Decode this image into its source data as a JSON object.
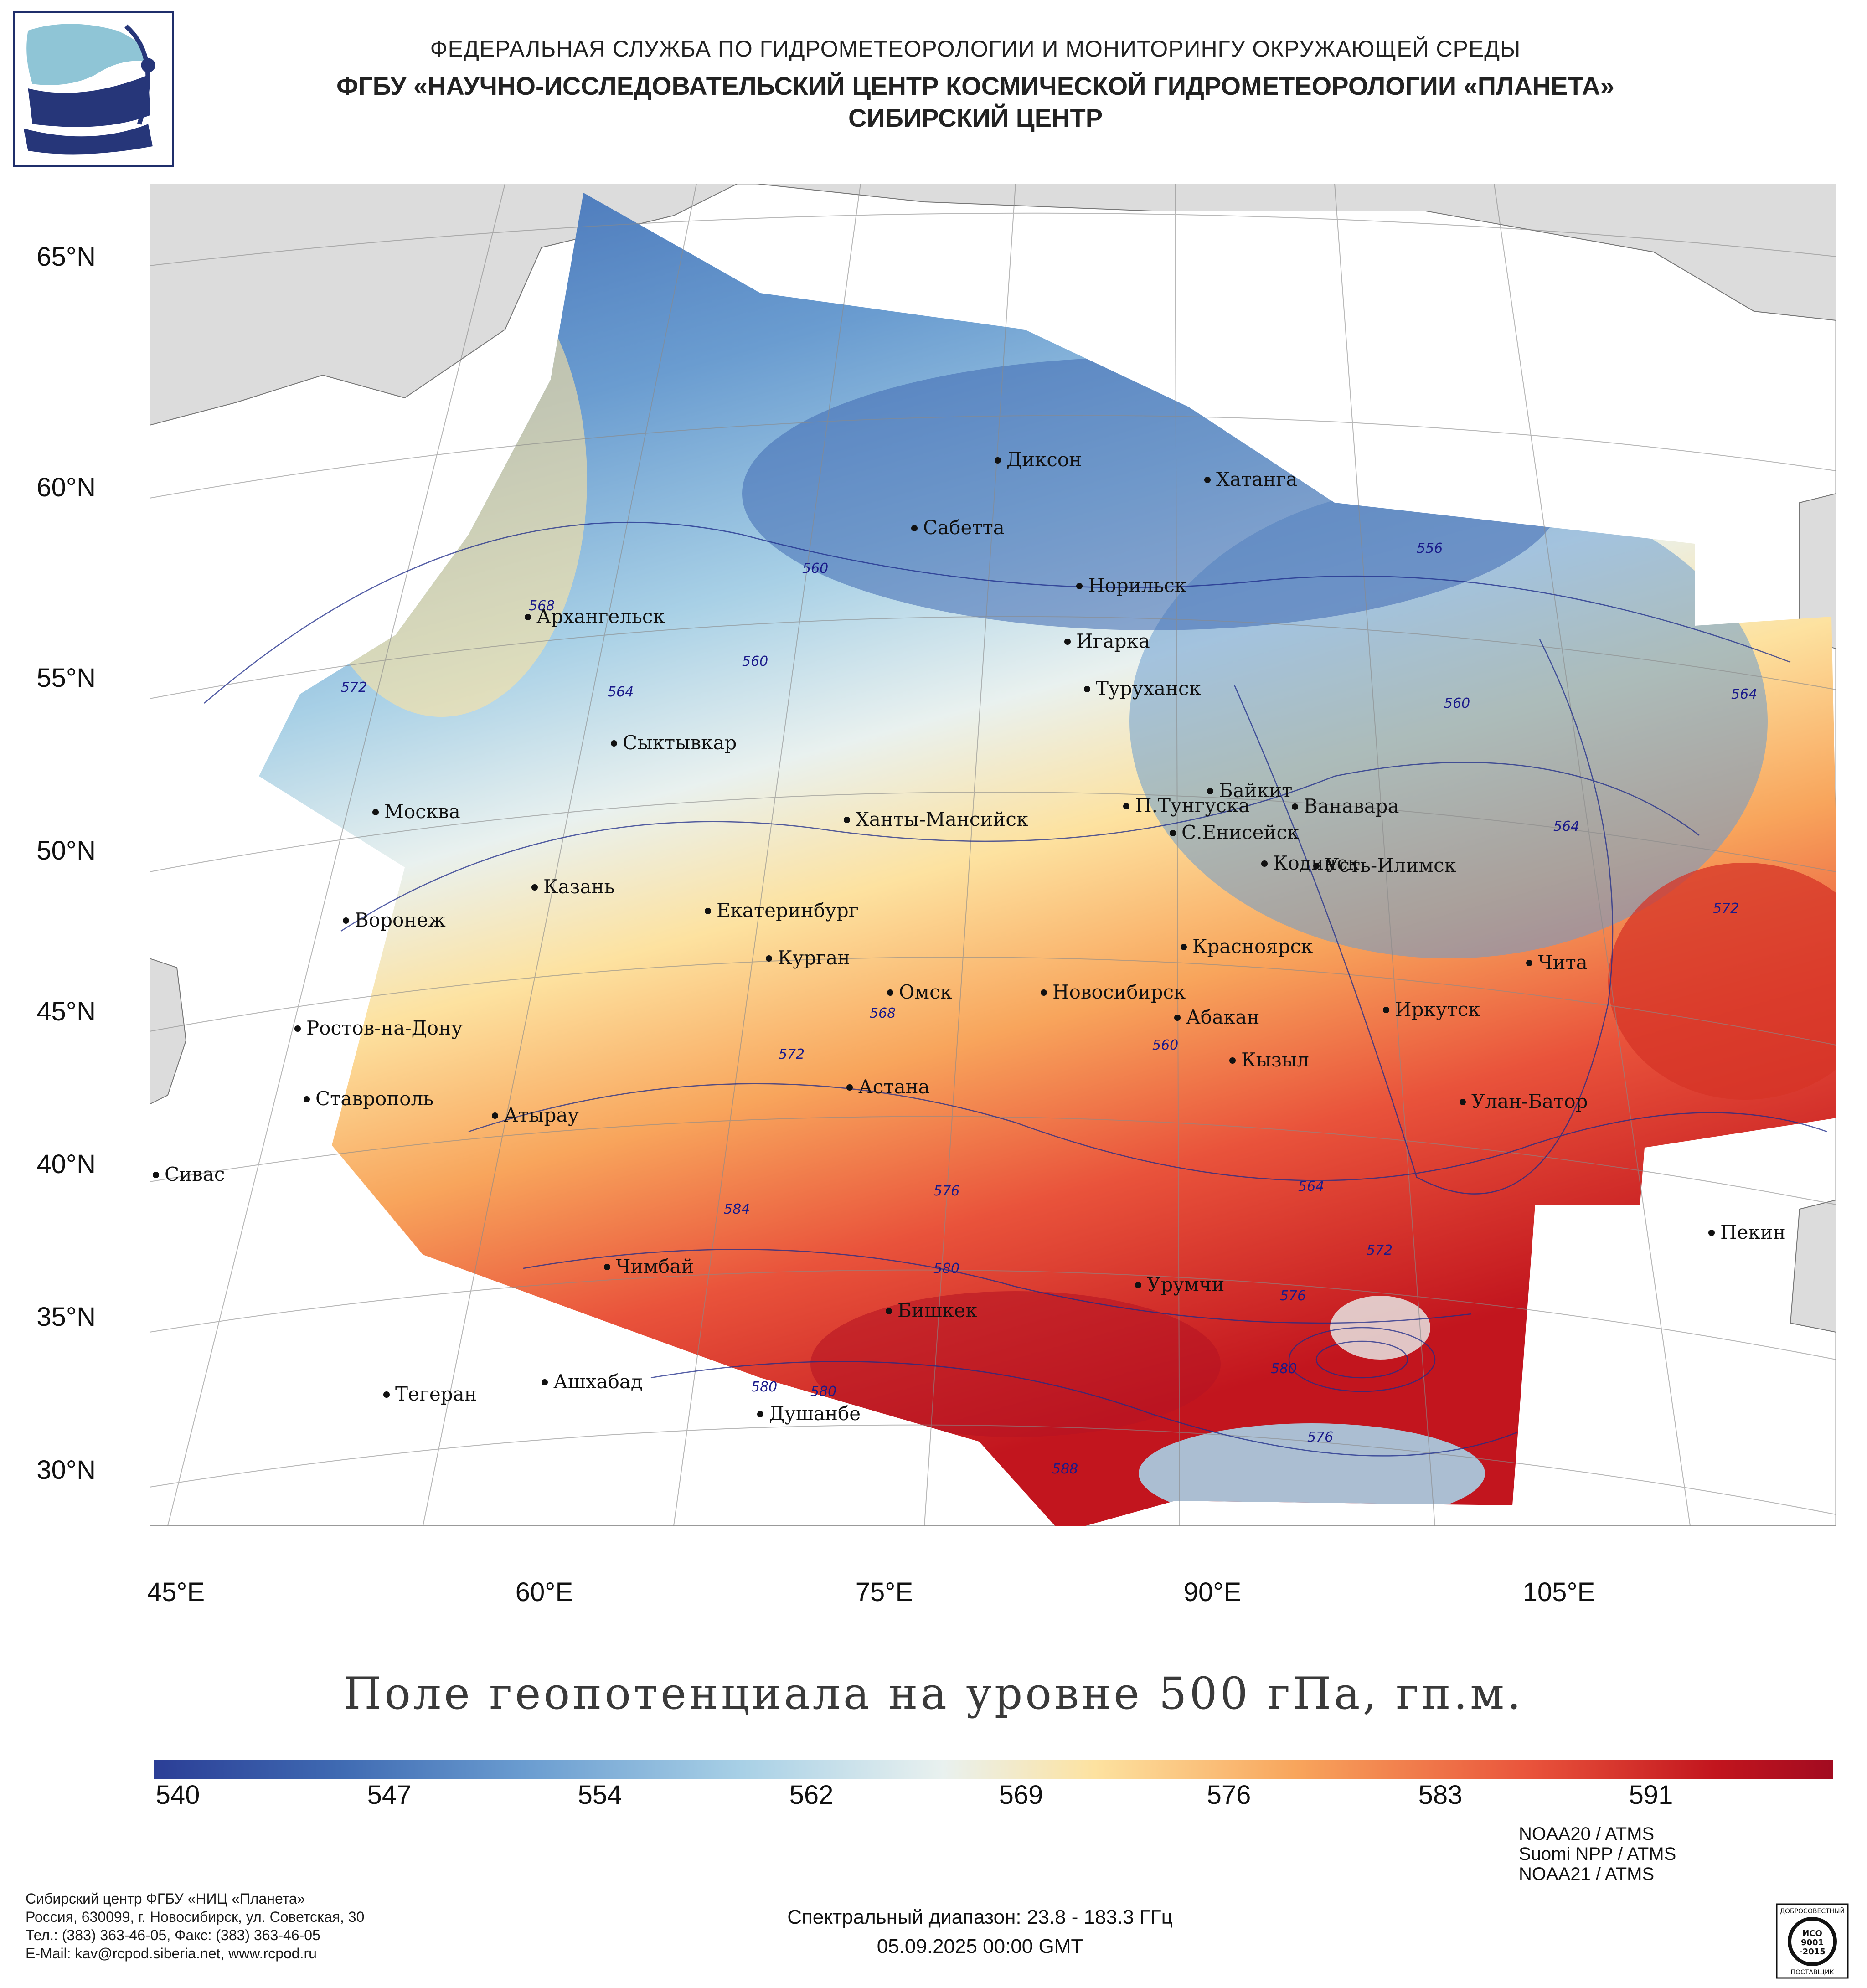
{
  "header": {
    "agency": "ФЕДЕРАЛЬНАЯ СЛУЖБА ПО ГИДРОМЕТЕОРОЛОГИИ И МОНИТОРИНГУ ОКРУЖАЮЩЕЙ СРЕДЫ",
    "org": "ФГБУ «НАУЧНО-ИССЛЕДОВАТЕЛЬСКИЙ ЦЕНТР КОСМИЧЕСКОЙ ГИДРОМЕТЕОРОЛОГИИ «ПЛАНЕТА»",
    "branch": "СИБИРСКИЙ ЦЕНТР"
  },
  "map": {
    "lat_labels": [
      "65°N",
      "60°N",
      "55°N",
      "50°N",
      "45°N",
      "40°N",
      "35°N",
      "30°N"
    ],
    "lon_labels": [
      "45°E",
      "60°E",
      "75°E",
      "90°E",
      "105°E"
    ],
    "cities": [
      "Диксон",
      "Хатанга",
      "Сабетта",
      "Норильск",
      "Архангельск",
      "Игарка",
      "Туруханск",
      "Сыктывкар",
      "Байкит",
      "Москва",
      "П.Тунгуска",
      "Ванавара",
      "Ханты-Мансийск",
      "С.Енисейск",
      "Кодинск",
      "Усть-Илимск",
      "Казань",
      "Воронеж",
      "Екатеринбург",
      "Красноярск",
      "Курган",
      "Чита",
      "Омск",
      "Новосибирск",
      "Ростов-на-Дону",
      "Абакан",
      "Иркутск",
      "Кызыл",
      "Ставрополь",
      "Астана",
      "Улан-Батор",
      "Атырау",
      "Сивас",
      "Пекин",
      "Чимбай",
      "Урумчи",
      "Бишкек",
      "Ашхабад",
      "Тегеран",
      "Душанбе"
    ],
    "contour_labels": [
      "560",
      "556",
      "568",
      "560",
      "572",
      "564",
      "560",
      "564",
      "564",
      "572",
      "568",
      "572",
      "560",
      "564",
      "584",
      "576",
      "580",
      "572",
      "576",
      "580",
      "580",
      "576",
      "588",
      "580"
    ]
  },
  "title": "Поле геопотенциала на уровне 500 гПа, гп.м.",
  "colorbar": {
    "labels": [
      "540",
      "547",
      "554",
      "562",
      "569",
      "576",
      "583",
      "591"
    ],
    "colors": [
      "#2b3e96",
      "#3f6ab2",
      "#6a9cd0",
      "#a8d0e6",
      "#e9f1ef",
      "#fde2a0",
      "#f8a55c",
      "#e9533b",
      "#c2151e",
      "#a20b20"
    ]
  },
  "footer": {
    "org_lines": [
      "Сибирский центр ФГБУ «НИЦ «Планета»",
      "Россия, 630099, г. Новосибирск, ул. Советская, 30",
      "Тел.: (383) 363-46-05, Факс: (383) 363-46-05",
      "E-Mail: kav@rcpod.siberia.net, www.rcpod.ru"
    ],
    "spectral": "Спектральный диапазон: 23.8 - 183.3 ГГц",
    "datetime": "05.09.2025 00:00 GMT",
    "satellites": [
      "NOAA20 / ATMS",
      "Suomi NPP / ATMS",
      "NOAA21 / ATMS"
    ],
    "iso_badge": [
      "ДОБРОСОВЕСТНЫЙ",
      "ИСО",
      "9001",
      "-2015",
      "ПОСТАВЩИК"
    ]
  }
}
